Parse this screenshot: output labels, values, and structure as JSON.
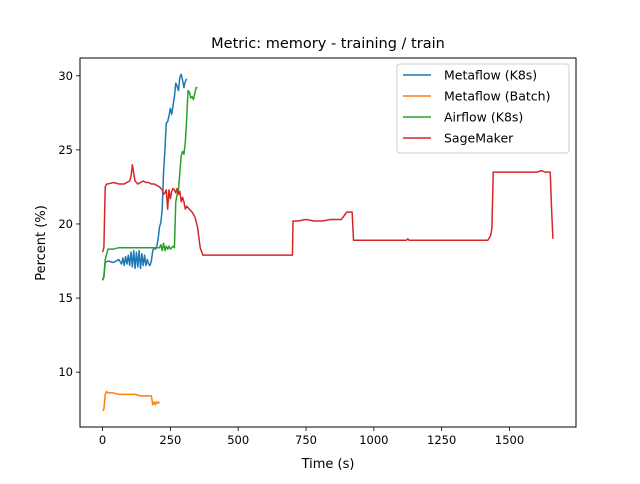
{
  "chart_data": {
    "type": "line",
    "title": "Metric: memory - training / train",
    "xlabel": "Time (s)",
    "ylabel": "Percent (%)",
    "xlim": [
      -83,
      1745
    ],
    "ylim": [
      6.3,
      31.2
    ],
    "xticks": [
      0,
      250,
      500,
      750,
      1000,
      1250,
      1500
    ],
    "yticks": [
      10,
      15,
      20,
      25,
      30
    ],
    "grid": false,
    "legend_position": "top-right",
    "series": [
      {
        "name": "Metaflow (K8s)",
        "color": "#1f77b4",
        "x": [
          0,
          5,
          10,
          20,
          40,
          60,
          70,
          75,
          80,
          85,
          90,
          95,
          100,
          105,
          110,
          115,
          120,
          125,
          130,
          135,
          140,
          145,
          150,
          155,
          160,
          165,
          170,
          175,
          180,
          185,
          190,
          195,
          200,
          205,
          210,
          215,
          220,
          225,
          230,
          235,
          240,
          245,
          250,
          255,
          260,
          265,
          270,
          275,
          280,
          285,
          290,
          295,
          300,
          305,
          310
        ],
        "y": [
          16.2,
          16.4,
          17.4,
          17.5,
          17.4,
          17.6,
          17.3,
          17.7,
          17.2,
          17.8,
          17.3,
          17.9,
          17.2,
          18.1,
          17.1,
          18.2,
          17.0,
          18.1,
          17.1,
          18.2,
          17.0,
          18.0,
          17.2,
          17.9,
          17.2,
          17.6,
          17.3,
          17.2,
          17.5,
          18.2,
          18.4,
          18.3,
          18.5,
          19.0,
          19.8,
          20.1,
          21.0,
          23.5,
          25.0,
          26.8,
          26.9,
          27.3,
          27.8,
          27.4,
          28.0,
          28.6,
          29.5,
          29.3,
          29.0,
          29.9,
          30.1,
          29.7,
          29.2,
          29.6,
          29.8
        ]
      },
      {
        "name": "Metaflow (Batch)",
        "color": "#ff7f0e",
        "x": [
          0,
          5,
          10,
          15,
          20,
          40,
          60,
          80,
          100,
          120,
          140,
          160,
          180,
          185,
          190,
          195,
          200,
          205,
          210
        ],
        "y": [
          7.4,
          7.5,
          8.5,
          8.7,
          8.6,
          8.6,
          8.5,
          8.5,
          8.5,
          8.5,
          8.4,
          8.4,
          8.4,
          7.8,
          8.0,
          7.8,
          8.0,
          7.9,
          8.0
        ]
      },
      {
        "name": "Airflow (K8s)",
        "color": "#2ca02c",
        "x": [
          0,
          5,
          10,
          20,
          40,
          60,
          80,
          100,
          120,
          140,
          160,
          180,
          200,
          210,
          215,
          220,
          225,
          230,
          235,
          240,
          245,
          250,
          255,
          260,
          265,
          270,
          275,
          280,
          285,
          290,
          295,
          300,
          305,
          310,
          315,
          320,
          325,
          330,
          335,
          340,
          345,
          350
        ],
        "y": [
          16.2,
          16.5,
          17.6,
          18.3,
          18.3,
          18.4,
          18.4,
          18.4,
          18.4,
          18.4,
          18.4,
          18.4,
          18.4,
          18.4,
          18.6,
          18.2,
          18.7,
          18.2,
          18.5,
          18.3,
          18.5,
          18.3,
          18.4,
          18.5,
          18.4,
          21.5,
          22.0,
          22.3,
          23.5,
          24.6,
          24.9,
          24.7,
          25.5,
          27.0,
          29.0,
          28.9,
          28.5,
          28.6,
          28.4,
          28.8,
          29.2,
          29.2
        ]
      },
      {
        "name": "SageMaker",
        "color": "#d62728",
        "x": [
          0,
          5,
          10,
          15,
          20,
          40,
          60,
          80,
          100,
          105,
          110,
          115,
          120,
          130,
          140,
          150,
          160,
          170,
          180,
          190,
          200,
          210,
          220,
          225,
          230,
          235,
          240,
          245,
          250,
          255,
          260,
          265,
          270,
          275,
          280,
          285,
          290,
          295,
          300,
          305,
          310,
          320,
          330,
          340,
          350,
          360,
          370,
          380,
          400,
          450,
          500,
          550,
          600,
          650,
          700,
          702,
          720,
          750,
          780,
          810,
          840,
          850,
          880,
          900,
          910,
          920,
          925,
          950,
          1000,
          1050,
          1100,
          1120,
          1125,
          1130,
          1150,
          1200,
          1250,
          1300,
          1350,
          1400,
          1420,
          1430,
          1435,
          1440,
          1450,
          1500,
          1550,
          1600,
          1620,
          1630,
          1640,
          1650,
          1655,
          1660
        ],
        "y": [
          18.1,
          18.4,
          22.5,
          22.7,
          22.7,
          22.8,
          22.7,
          22.7,
          22.9,
          23.2,
          24.0,
          23.4,
          22.9,
          22.7,
          22.8,
          22.9,
          22.8,
          22.8,
          22.7,
          22.7,
          22.6,
          22.5,
          22.3,
          22.0,
          22.1,
          22.3,
          21.0,
          22.3,
          21.7,
          22.2,
          22.4,
          22.3,
          22.1,
          22.4,
          22.0,
          22.2,
          21.5,
          21.8,
          21.5,
          21.0,
          21.2,
          21.0,
          20.8,
          20.5,
          19.8,
          18.4,
          17.9,
          17.9,
          17.9,
          17.9,
          17.9,
          17.9,
          17.9,
          17.9,
          17.9,
          20.2,
          20.2,
          20.3,
          20.2,
          20.2,
          20.3,
          20.3,
          20.3,
          20.8,
          20.8,
          20.8,
          18.9,
          18.9,
          18.9,
          18.9,
          18.9,
          18.9,
          19.0,
          18.9,
          18.9,
          18.9,
          18.9,
          18.9,
          18.9,
          18.9,
          18.9,
          19.2,
          19.7,
          23.5,
          23.5,
          23.5,
          23.5,
          23.5,
          23.6,
          23.5,
          23.5,
          23.5,
          21.0,
          19.0
        ]
      }
    ]
  }
}
